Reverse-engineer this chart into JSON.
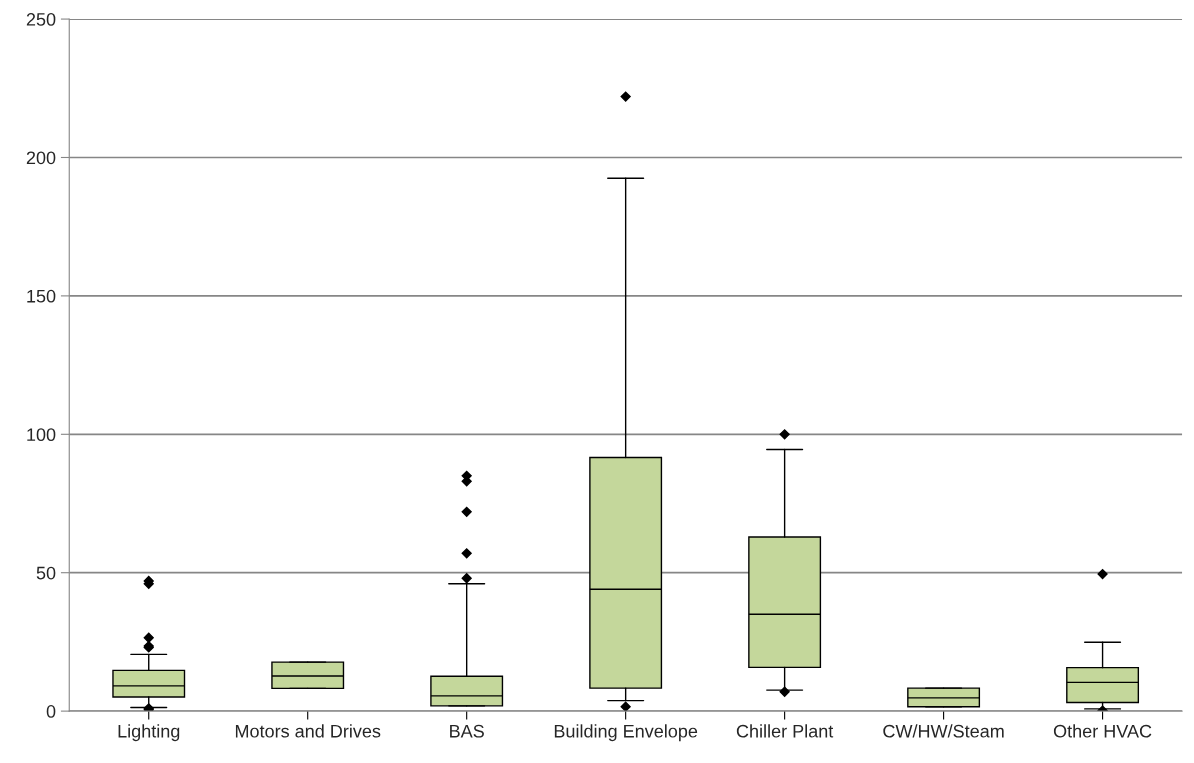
{
  "chart_data": {
    "type": "box",
    "categories": [
      "Lighting",
      "Motors and Drives",
      "BAS",
      "Building Envelope",
      "Chiller Plant",
      "CW/HW/Steam",
      "Other HVAC"
    ],
    "color": "#c4d79b",
    "boxes": [
      {
        "low": 1.3,
        "q1": 5.1,
        "median": 9.1,
        "q3": 14.7,
        "high": 20.5,
        "outliers": [
          47,
          46,
          26.5,
          23.5,
          23,
          1,
          0.5
        ]
      },
      {
        "low": 8.2,
        "q1": 8.2,
        "median": 12.7,
        "q3": 17.7,
        "high": 17.7
      },
      {
        "low": 1.9,
        "q1": 1.9,
        "median": 5.5,
        "q3": 12.6,
        "high": 46,
        "outliers": [
          85,
          83,
          72,
          57,
          48
        ]
      },
      {
        "low": 3.8,
        "q1": 8.3,
        "median": 44,
        "q3": 91.6,
        "high": 192.5,
        "outliers": [
          222,
          1.6
        ]
      },
      {
        "low": 7.6,
        "q1": 15.8,
        "median": 35,
        "q3": 62.9,
        "high": 94.5,
        "outliers": [
          100,
          7
        ]
      },
      {
        "low": 1.6,
        "q1": 1.6,
        "median": 4.8,
        "q3": 8.3,
        "high": 8.3
      },
      {
        "low": 0.8,
        "q1": 3.1,
        "median": 10.4,
        "q3": 15.7,
        "high": 24.9,
        "outliers": [
          49.5,
          0.2
        ]
      }
    ],
    "ylim": [
      0,
      250
    ],
    "yticks": [
      0,
      50,
      100,
      150,
      200,
      250
    ],
    "grid": "y",
    "marker": "diamond"
  }
}
